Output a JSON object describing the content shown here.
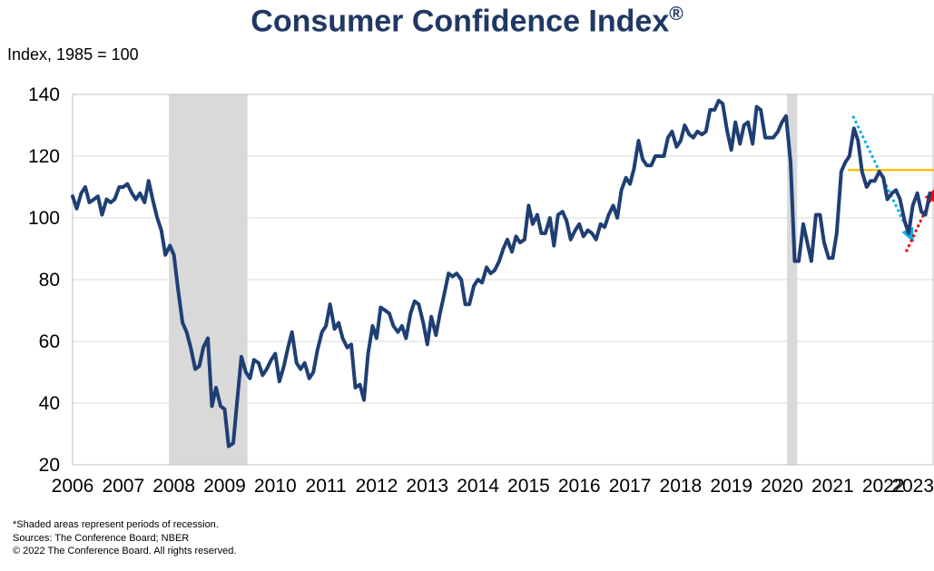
{
  "chart_data": {
    "type": "line",
    "title": "Consumer Confidence Index",
    "title_mark": "®",
    "ylabel": "Index, 1985 = 100",
    "ylim": [
      20,
      140
    ],
    "yticks": [
      "140",
      "120",
      "100",
      "80",
      "60",
      "40",
      "20"
    ],
    "xlim": [
      2006,
      2023
    ],
    "xticks": [
      "2006",
      "2007",
      "2008",
      "2009",
      "2010",
      "2011",
      "2012",
      "2013",
      "2014",
      "2015",
      "2016",
      "2017",
      "2018",
      "2019",
      "2020",
      "2021",
      "2022",
      "2023"
    ],
    "grid": "horizontal",
    "recessions": [
      {
        "start": 2007.9,
        "end": 2009.45
      },
      {
        "start": 2020.1,
        "end": 2020.3
      }
    ],
    "series": [
      {
        "color": "#1f3f74",
        "points": [
          [
            2006.0,
            107
          ],
          [
            2006.08,
            103
          ],
          [
            2006.17,
            108
          ],
          [
            2006.25,
            110
          ],
          [
            2006.33,
            105
          ],
          [
            2006.42,
            106
          ],
          [
            2006.5,
            107
          ],
          [
            2006.58,
            101
          ],
          [
            2006.67,
            106
          ],
          [
            2006.75,
            105
          ],
          [
            2006.83,
            106
          ],
          [
            2006.92,
            110
          ],
          [
            2007.0,
            110
          ],
          [
            2007.08,
            111
          ],
          [
            2007.17,
            108
          ],
          [
            2007.25,
            106
          ],
          [
            2007.33,
            108
          ],
          [
            2007.42,
            105
          ],
          [
            2007.5,
            112
          ],
          [
            2007.58,
            106
          ],
          [
            2007.67,
            100
          ],
          [
            2007.75,
            96
          ],
          [
            2007.83,
            88
          ],
          [
            2007.92,
            91
          ],
          [
            2008.0,
            88
          ],
          [
            2008.08,
            77
          ],
          [
            2008.17,
            66
          ],
          [
            2008.25,
            63
          ],
          [
            2008.33,
            58
          ],
          [
            2008.42,
            51
          ],
          [
            2008.5,
            52
          ],
          [
            2008.58,
            58
          ],
          [
            2008.67,
            61
          ],
          [
            2008.75,
            39
          ],
          [
            2008.83,
            45
          ],
          [
            2008.92,
            39
          ],
          [
            2009.0,
            38
          ],
          [
            2009.08,
            26
          ],
          [
            2009.17,
            27
          ],
          [
            2009.25,
            41
          ],
          [
            2009.33,
            55
          ],
          [
            2009.42,
            50
          ],
          [
            2009.5,
            48
          ],
          [
            2009.58,
            54
          ],
          [
            2009.67,
            53
          ],
          [
            2009.75,
            49
          ],
          [
            2009.83,
            51
          ],
          [
            2009.92,
            54
          ],
          [
            2010.0,
            56
          ],
          [
            2010.08,
            47
          ],
          [
            2010.17,
            52
          ],
          [
            2010.25,
            58
          ],
          [
            2010.33,
            63
          ],
          [
            2010.42,
            53
          ],
          [
            2010.5,
            51
          ],
          [
            2010.58,
            53
          ],
          [
            2010.67,
            48
          ],
          [
            2010.75,
            50
          ],
          [
            2010.83,
            57
          ],
          [
            2010.92,
            63
          ],
          [
            2011.0,
            65
          ],
          [
            2011.08,
            72
          ],
          [
            2011.17,
            64
          ],
          [
            2011.25,
            66
          ],
          [
            2011.33,
            61
          ],
          [
            2011.42,
            58
          ],
          [
            2011.5,
            59
          ],
          [
            2011.58,
            45
          ],
          [
            2011.67,
            46
          ],
          [
            2011.75,
            41
          ],
          [
            2011.83,
            56
          ],
          [
            2011.92,
            65
          ],
          [
            2012.0,
            61
          ],
          [
            2012.08,
            71
          ],
          [
            2012.17,
            70
          ],
          [
            2012.25,
            69
          ],
          [
            2012.33,
            65
          ],
          [
            2012.42,
            63
          ],
          [
            2012.5,
            65
          ],
          [
            2012.58,
            61
          ],
          [
            2012.67,
            69
          ],
          [
            2012.75,
            73
          ],
          [
            2012.83,
            72
          ],
          [
            2012.92,
            66
          ],
          [
            2013.0,
            59
          ],
          [
            2013.08,
            68
          ],
          [
            2013.17,
            62
          ],
          [
            2013.25,
            69
          ],
          [
            2013.33,
            75
          ],
          [
            2013.42,
            82
          ],
          [
            2013.5,
            81
          ],
          [
            2013.58,
            82
          ],
          [
            2013.67,
            80
          ],
          [
            2013.75,
            72
          ],
          [
            2013.83,
            72
          ],
          [
            2013.92,
            78
          ],
          [
            2014.0,
            80
          ],
          [
            2014.08,
            79
          ],
          [
            2014.17,
            84
          ],
          [
            2014.25,
            82
          ],
          [
            2014.33,
            83
          ],
          [
            2014.42,
            86
          ],
          [
            2014.5,
            90
          ],
          [
            2014.58,
            93
          ],
          [
            2014.67,
            89
          ],
          [
            2014.75,
            94
          ],
          [
            2014.83,
            92
          ],
          [
            2014.92,
            93
          ],
          [
            2015.0,
            104
          ],
          [
            2015.08,
            98
          ],
          [
            2015.17,
            101
          ],
          [
            2015.25,
            95
          ],
          [
            2015.33,
            95
          ],
          [
            2015.42,
            100
          ],
          [
            2015.5,
            91
          ],
          [
            2015.58,
            101
          ],
          [
            2015.67,
            102
          ],
          [
            2015.75,
            99
          ],
          [
            2015.83,
            93
          ],
          [
            2015.92,
            96
          ],
          [
            2016.0,
            98
          ],
          [
            2016.08,
            94
          ],
          [
            2016.17,
            96
          ],
          [
            2016.25,
            95
          ],
          [
            2016.33,
            93
          ],
          [
            2016.42,
            98
          ],
          [
            2016.5,
            97
          ],
          [
            2016.58,
            101
          ],
          [
            2016.67,
            104
          ],
          [
            2016.75,
            100
          ],
          [
            2016.83,
            109
          ],
          [
            2016.92,
            113
          ],
          [
            2017.0,
            111
          ],
          [
            2017.08,
            116
          ],
          [
            2017.17,
            125
          ],
          [
            2017.25,
            119
          ],
          [
            2017.33,
            117
          ],
          [
            2017.42,
            117
          ],
          [
            2017.5,
            120
          ],
          [
            2017.58,
            120
          ],
          [
            2017.67,
            120
          ],
          [
            2017.75,
            126
          ],
          [
            2017.83,
            128
          ],
          [
            2017.92,
            123
          ],
          [
            2018.0,
            125
          ],
          [
            2018.08,
            130
          ],
          [
            2018.17,
            127
          ],
          [
            2018.25,
            126
          ],
          [
            2018.33,
            128
          ],
          [
            2018.42,
            127
          ],
          [
            2018.5,
            128
          ],
          [
            2018.58,
            135
          ],
          [
            2018.67,
            135
          ],
          [
            2018.75,
            138
          ],
          [
            2018.83,
            137
          ],
          [
            2018.92,
            128
          ],
          [
            2019.0,
            122
          ],
          [
            2019.08,
            131
          ],
          [
            2019.17,
            124
          ],
          [
            2019.25,
            130
          ],
          [
            2019.33,
            131
          ],
          [
            2019.42,
            124
          ],
          [
            2019.5,
            136
          ],
          [
            2019.58,
            135
          ],
          [
            2019.67,
            126
          ],
          [
            2019.75,
            126
          ],
          [
            2019.83,
            126
          ],
          [
            2019.92,
            128
          ],
          [
            2020.0,
            131
          ],
          [
            2020.08,
            133
          ],
          [
            2020.17,
            118
          ],
          [
            2020.25,
            86
          ],
          [
            2020.33,
            86
          ],
          [
            2020.42,
            98
          ],
          [
            2020.5,
            92
          ],
          [
            2020.58,
            86
          ],
          [
            2020.67,
            101
          ],
          [
            2020.75,
            101
          ],
          [
            2020.83,
            92
          ],
          [
            2020.92,
            87
          ],
          [
            2021.0,
            87
          ],
          [
            2021.08,
            95
          ],
          [
            2021.17,
            115
          ],
          [
            2021.25,
            118
          ],
          [
            2021.33,
            120
          ],
          [
            2021.42,
            129
          ],
          [
            2021.5,
            125
          ],
          [
            2021.58,
            115
          ],
          [
            2021.67,
            110
          ],
          [
            2021.75,
            112
          ],
          [
            2021.83,
            112
          ],
          [
            2021.92,
            115
          ],
          [
            2022.0,
            113
          ],
          [
            2022.08,
            106
          ],
          [
            2022.17,
            108
          ],
          [
            2022.25,
            109
          ],
          [
            2022.33,
            106
          ],
          [
            2022.42,
            99
          ],
          [
            2022.5,
            95
          ],
          [
            2022.58,
            104
          ],
          [
            2022.67,
            108
          ],
          [
            2022.75,
            102
          ],
          [
            2022.83,
            101
          ],
          [
            2022.92,
            108
          ]
        ]
      }
    ],
    "annotations": {
      "hline": {
        "y": 115.5,
        "x_start": 2021.3,
        "color": "#ffc000"
      },
      "down_trend": {
        "from": [
          2021.4,
          133
        ],
        "to": [
          2022.6,
          92
        ],
        "color": "#00b0f0"
      },
      "up_trend": {
        "from": [
          2022.45,
          89
        ],
        "to": [
          2023.05,
          110
        ],
        "color": "#ff0000"
      }
    }
  },
  "footnotes": {
    "line1": "*Shaded areas represent periods of recession.",
    "line2": "Sources: The Conference Board; NBER",
    "line3": "© 2022 The Conference Board. All rights reserved."
  }
}
